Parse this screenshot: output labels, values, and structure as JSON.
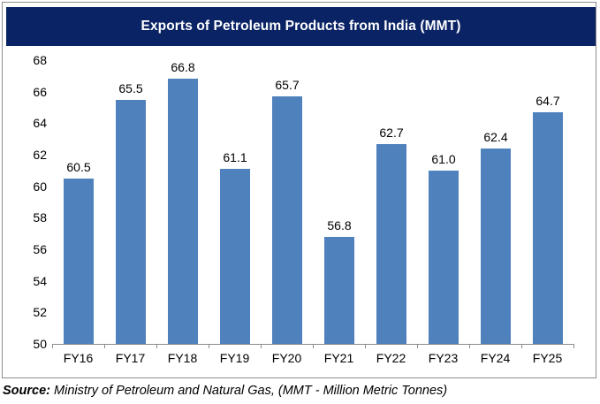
{
  "title": "Exports of Petroleum Products from India (MMT)",
  "source": {
    "label": "Source:",
    "text": " Ministry of Petroleum and Natural Gas, (MMT - Million Metric Tonnes)"
  },
  "colors": {
    "bar": "#4F81BD",
    "title_bg": "#0A2365",
    "title_text": "#FFFFFF",
    "axis": "#8C8C8C",
    "border": "#8C8C8C",
    "text": "#000000"
  },
  "chart_data": {
    "type": "bar",
    "title": "Exports of Petroleum Products from India (MMT)",
    "categories": [
      "FY16",
      "FY17",
      "FY18",
      "FY19",
      "FY20",
      "FY21",
      "FY22",
      "FY23",
      "FY24",
      "FY25"
    ],
    "values": [
      60.5,
      65.5,
      66.8,
      61.1,
      65.7,
      56.8,
      62.7,
      61.0,
      62.4,
      64.7
    ],
    "data_labels": [
      "60.5",
      "65.5",
      "66.8",
      "61.1",
      "65.7",
      "56.8",
      "62.7",
      "61.0",
      "62.4",
      "64.7"
    ],
    "xlabel": "",
    "ylabel": "",
    "ylim": [
      50,
      68
    ],
    "yticks": [
      50,
      52,
      54,
      56,
      58,
      60,
      62,
      64,
      66,
      68
    ],
    "grid": false,
    "legend": false,
    "bar_color": "#4F81BD"
  }
}
